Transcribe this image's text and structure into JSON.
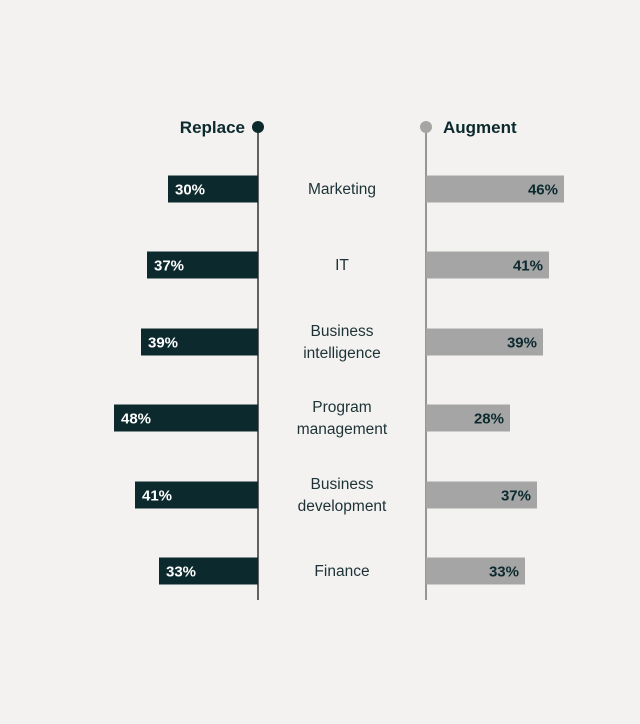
{
  "chart_data": {
    "type": "bar",
    "left_series": {
      "name": "Replace",
      "color": "#0c2a2e",
      "text_color": "#ffffff"
    },
    "right_series": {
      "name": "Augment",
      "color": "#a5a5a5",
      "text_color": "#0c2a2e"
    },
    "categories": [
      {
        "label": [
          "Marketing"
        ],
        "replace": 30,
        "augment": 46
      },
      {
        "label": [
          "IT"
        ],
        "replace": 37,
        "augment": 41
      },
      {
        "label": [
          "Business",
          "intelligence"
        ],
        "replace": 39,
        "augment": 39
      },
      {
        "label": [
          "Program",
          "management"
        ],
        "replace": 48,
        "augment": 28
      },
      {
        "label": [
          "Business",
          "development"
        ],
        "replace": 41,
        "augment": 37
      },
      {
        "label": [
          "Finance"
        ],
        "replace": 33,
        "augment": 33
      }
    ],
    "value_suffix": "%",
    "label_color": "#1d3236"
  }
}
